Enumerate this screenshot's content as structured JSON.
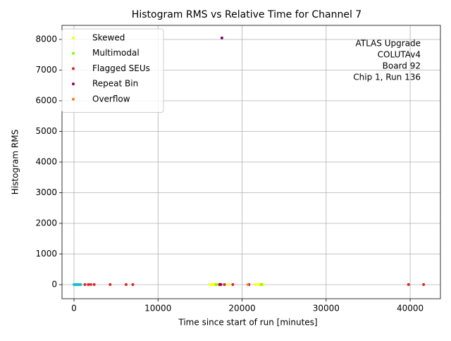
{
  "chart_data": {
    "type": "scatter",
    "title": "Histogram RMS vs Relative Time for Channel 7",
    "xlabel": "Time since start of run [minutes]",
    "ylabel": "Histogram RMS",
    "annotation": [
      "ATLAS Upgrade",
      "COLUTAv4",
      "Board 92",
      "Chip 1, Run 136"
    ],
    "xlim": [
      -1425,
      43600
    ],
    "ylim": [
      -460,
      8460
    ],
    "xticks": [
      0,
      10000,
      20000,
      30000,
      40000
    ],
    "yticks": [
      0,
      1000,
      2000,
      3000,
      4000,
      5000,
      6000,
      7000,
      8000
    ],
    "grid": true,
    "legend": "upper left",
    "series": [
      {
        "color": "#17becf",
        "x": [
          0,
          100,
          200,
          300,
          400,
          500,
          600,
          700,
          800
        ],
        "values": [
          2,
          2,
          2,
          2,
          2,
          2,
          2,
          2,
          2
        ]
      },
      {
        "name": "Skewed",
        "color": "#ffff00",
        "x": [
          16200,
          16400,
          16600,
          16800,
          17000,
          17200,
          18400,
          21600,
          22000,
          22200,
          22500
        ],
        "values": [
          2,
          2,
          2,
          2,
          2,
          2,
          2,
          2,
          2,
          2,
          2
        ]
      },
      {
        "name": "Multimodal",
        "color": "#7fff00",
        "x": [
          16900,
          22300
        ],
        "values": [
          2,
          2
        ]
      },
      {
        "name": "Flagged SEUs",
        "color": "#d62728",
        "x": [
          1300,
          1700,
          2000,
          2400,
          4300,
          6200,
          7000,
          17300,
          17500,
          17900,
          18900,
          20800,
          39800,
          41600
        ],
        "values": [
          3,
          3,
          3,
          3,
          3,
          3,
          3,
          3,
          3,
          3,
          3,
          3,
          3,
          3
        ]
      },
      {
        "name": "Repeat Bin",
        "color": "#800080",
        "x": [
          17600,
          17400,
          20800
        ],
        "values": [
          8050,
          5,
          5
        ]
      },
      {
        "name": "Overflow",
        "color": "#ff7f0e",
        "x": [
          20700
        ],
        "values": [
          3
        ]
      }
    ]
  }
}
